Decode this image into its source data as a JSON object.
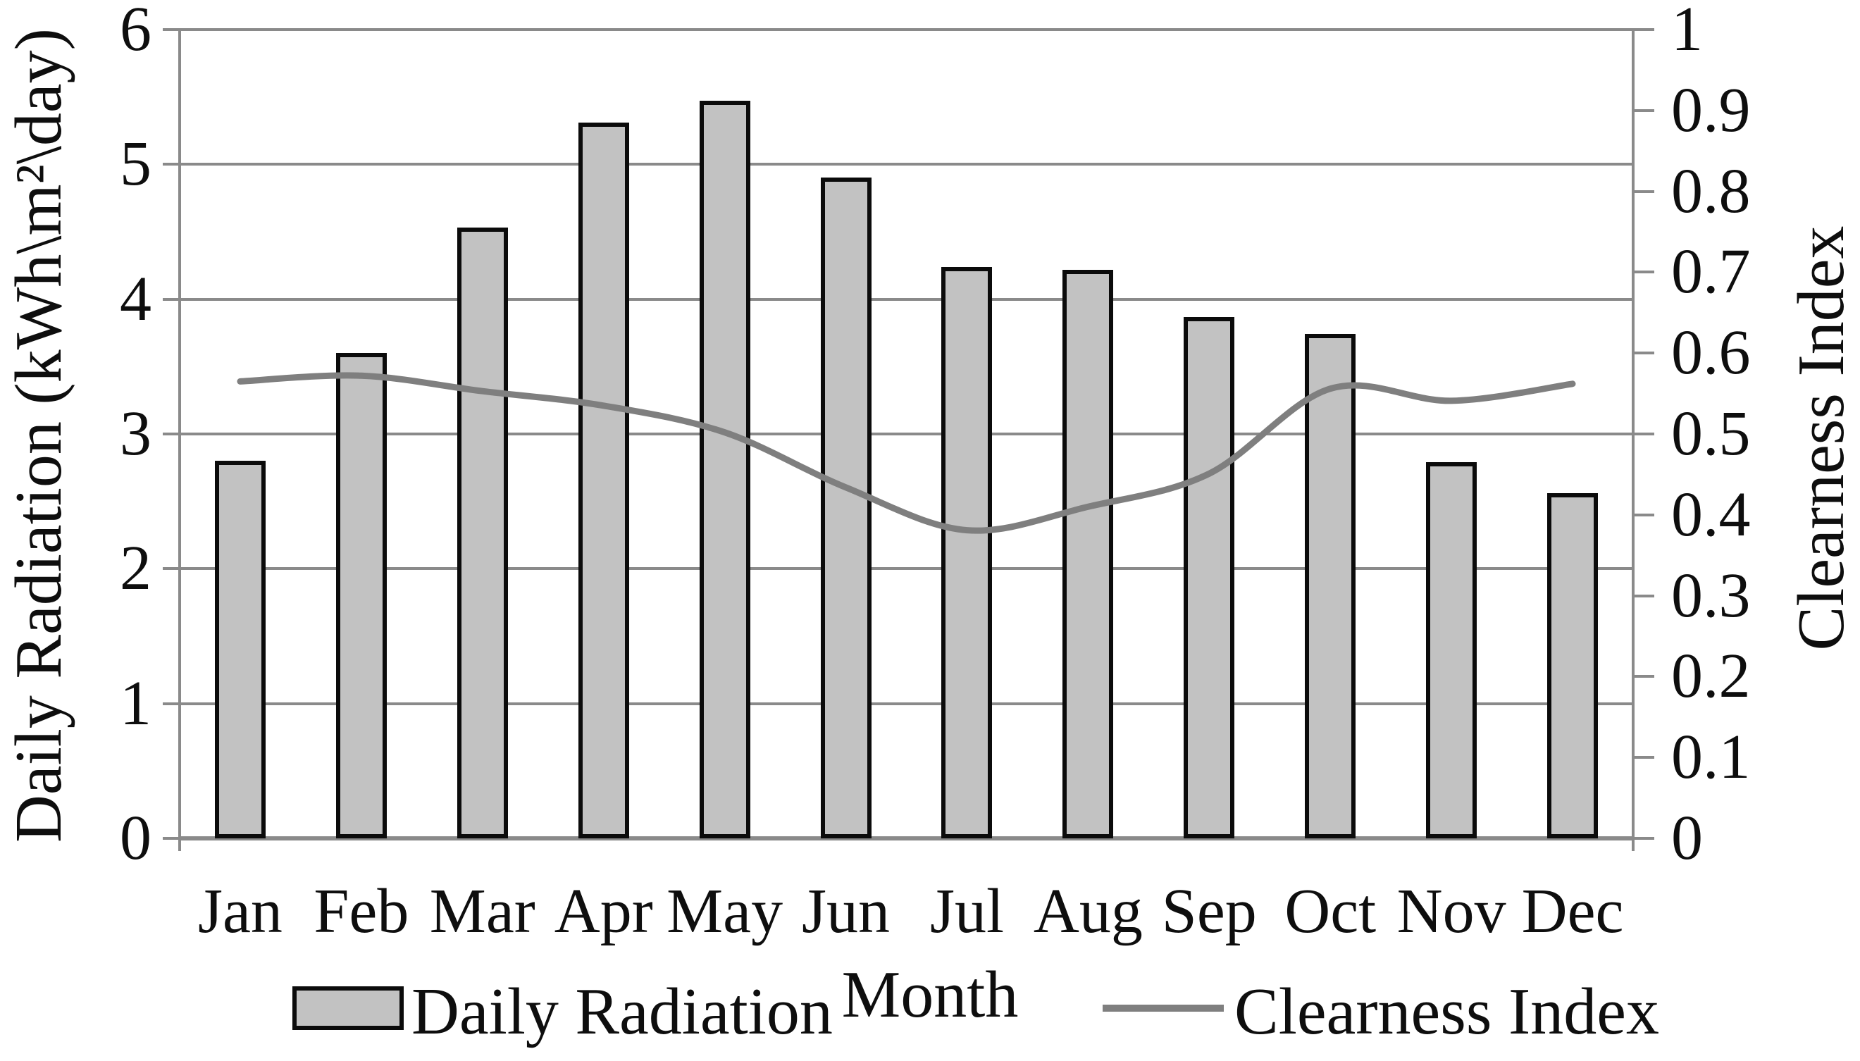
{
  "chart_data": {
    "type": "combo-bar-line",
    "categories": [
      "Jan",
      "Feb",
      "Mar",
      "Apr",
      "May",
      "Jun",
      "Jul",
      "Aug",
      "Sep",
      "Oct",
      "Nov",
      "Dec"
    ],
    "series": [
      {
        "name": "Daily Radiation",
        "type": "bar",
        "axis": "left",
        "values": [
          2.8,
          3.6,
          4.53,
          5.31,
          5.47,
          4.9,
          4.24,
          4.22,
          3.87,
          3.74,
          2.79,
          2.56
        ]
      },
      {
        "name": "Clearness Index",
        "type": "line",
        "axis": "right",
        "values": [
          0.565,
          0.572,
          0.553,
          0.535,
          0.502,
          0.434,
          0.381,
          0.41,
          0.451,
          0.556,
          0.541,
          0.562
        ]
      }
    ],
    "x_axis": {
      "title": "Month"
    },
    "left_axis": {
      "title": "Daily Radiation (kWh\\m²\\day)",
      "min": 0,
      "max": 6,
      "tick_labels": [
        "6",
        "5",
        "4",
        "3",
        "2",
        "1",
        "0"
      ]
    },
    "right_axis": {
      "title": "Clearness Index",
      "min": 0,
      "max": 1,
      "tick_labels": [
        "1",
        "0.9",
        "0.8",
        "0.7",
        "0.6",
        "0.5",
        "0.4",
        "0.3",
        "0.2",
        "0.1",
        "0"
      ]
    },
    "legend": {
      "position": "bottom",
      "entries": [
        {
          "label": "Daily Radiation",
          "marker": "bar-swatch"
        },
        {
          "label": "Clearness Index",
          "marker": "line-swatch"
        }
      ]
    },
    "grid": {
      "horizontal": true,
      "vertical": false
    },
    "colors": {
      "bar_fill": "#c2c2c2",
      "bar_border": "#0b0b0b",
      "line": "#7f7f7f",
      "gridline": "#8a8a8a",
      "axis": "#8a8a8a",
      "text": "#0e0e0e",
      "background": "#ffffff"
    }
  }
}
